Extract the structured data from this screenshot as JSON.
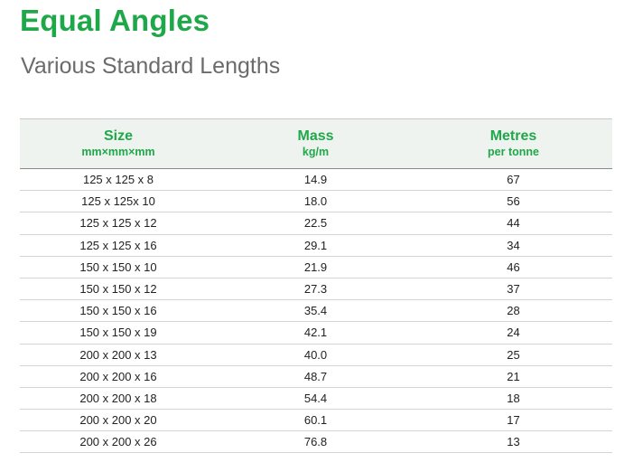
{
  "header": {
    "title": "Equal Angles",
    "subtitle": "Various Standard Lengths"
  },
  "table": {
    "columns": [
      {
        "label": "Size",
        "unit": "mm×mm×mm"
      },
      {
        "label": "Mass",
        "unit": "kg/m"
      },
      {
        "label": "Metres",
        "unit": "per tonne"
      }
    ],
    "rows": [
      {
        "size": "125 x 125 x 8",
        "mass": "14.9",
        "metres": "67"
      },
      {
        "size": "125 x 125x 10",
        "mass": "18.0",
        "metres": "56"
      },
      {
        "size": "125 x 125 x 12",
        "mass": "22.5",
        "metres": "44"
      },
      {
        "size": "125 x 125 x 16",
        "mass": "29.1",
        "metres": "34"
      },
      {
        "size": "150 x 150 x 10",
        "mass": "21.9",
        "metres": "46"
      },
      {
        "size": "150 x 150 x 12",
        "mass": "27.3",
        "metres": "37"
      },
      {
        "size": "150 x 150 x 16",
        "mass": "35.4",
        "metres": "28"
      },
      {
        "size": "150 x 150 x 19",
        "mass": "42.1",
        "metres": "24"
      },
      {
        "size": "200 x 200 x 13",
        "mass": "40.0",
        "metres": "25"
      },
      {
        "size": "200 x 200 x 16",
        "mass": "48.7",
        "metres": "21"
      },
      {
        "size": "200 x 200 x 18",
        "mass": "54.4",
        "metres": "18"
      },
      {
        "size": "200 x 200 x 20",
        "mass": "60.1",
        "metres": "17"
      },
      {
        "size": "200 x 200 x 26",
        "mass": "76.8",
        "metres": "13"
      }
    ]
  },
  "colors": {
    "accent": "#1fa84a",
    "subtitle": "#6b6b6b",
    "header_bg": "#eef3ef"
  }
}
